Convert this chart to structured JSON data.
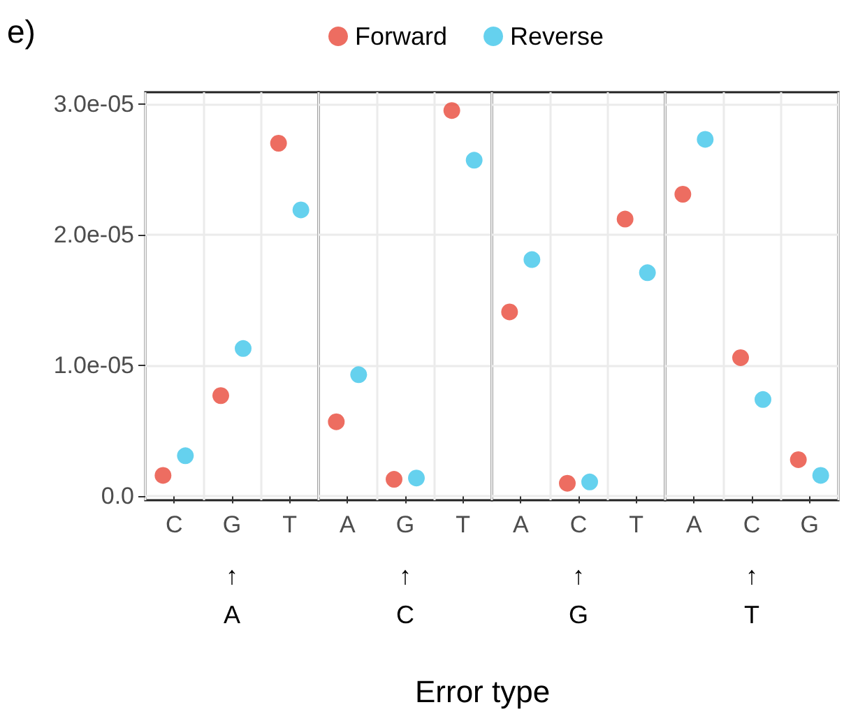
{
  "chart_data": [
    {
      "type": "scatter",
      "title": "e)",
      "xlabel": "↑\nA",
      "annotations": [
        "Error type"
      ],
      "legend": "top",
      "grid": true,
      "marker": "circle",
      "categories": [
        "C",
        "G",
        "T"
      ],
      "ylim": [
        -3e-07,
        3.09e-05
      ],
      "yticks": [
        {
          "value": 0,
          "label": "0.0"
        },
        {
          "value": 1e-05,
          "label": "1.0e-05"
        },
        {
          "value": 2e-05,
          "label": "2.0e-05"
        },
        {
          "value": 3e-05,
          "label": "3.0e-05"
        }
      ],
      "series": [
        {
          "name": "Forward",
          "color": "#e8493a",
          "values": [
            1.6e-06,
            7.7e-06,
            2.7e-05
          ]
        },
        {
          "name": "Reverse",
          "color": "#3ec5ea",
          "values": [
            3.1e-06,
            1.13e-05,
            2.19e-05
          ]
        }
      ]
    },
    {
      "type": "scatter",
      "xlabel": "↑\nC",
      "tick_labels": "x",
      "grid": true,
      "marker": "circle",
      "categories": [
        "A",
        "G",
        "T"
      ],
      "ylim": [
        -3e-07,
        3.09e-05
      ],
      "yticks": [
        0,
        1e-05,
        2e-05,
        3e-05
      ],
      "series": [
        {
          "color": "#e8493a",
          "values": [
            5.7e-06,
            1.3e-06,
            2.95e-05
          ]
        },
        {
          "color": "#3ec5ea",
          "values": [
            9.3e-06,
            1.4e-06,
            2.57e-05
          ]
        }
      ]
    },
    {
      "type": "scatter",
      "xlabel": "↑\nG",
      "tick_labels": "x",
      "grid": true,
      "marker": "circle",
      "categories": [
        "A",
        "C",
        "T"
      ],
      "ylim": [
        -3e-07,
        3.09e-05
      ],
      "yticks": [
        0,
        1e-05,
        2e-05,
        3e-05
      ],
      "series": [
        {
          "color": "#e8493a",
          "values": [
            1.41e-05,
            1e-06,
            2.12e-05
          ]
        },
        {
          "color": "#3ec5ea",
          "values": [
            1.81e-05,
            1.1e-06,
            1.71e-05
          ]
        }
      ]
    },
    {
      "type": "scatter",
      "xlabel": "↑\nT",
      "tick_labels": "x",
      "grid": true,
      "marker": "circle",
      "categories": [
        "A",
        "C",
        "G"
      ],
      "ylim": [
        -3e-07,
        3.09e-05
      ],
      "yticks": [
        0,
        1e-05,
        2e-05,
        3e-05
      ],
      "series": [
        {
          "color": "#e8493a",
          "values": [
            2.31e-05,
            1.06e-05,
            2.8e-06
          ]
        },
        {
          "color": "#3ec5ea",
          "values": [
            2.73e-05,
            7.4e-06,
            1.6e-06
          ]
        }
      ]
    }
  ]
}
